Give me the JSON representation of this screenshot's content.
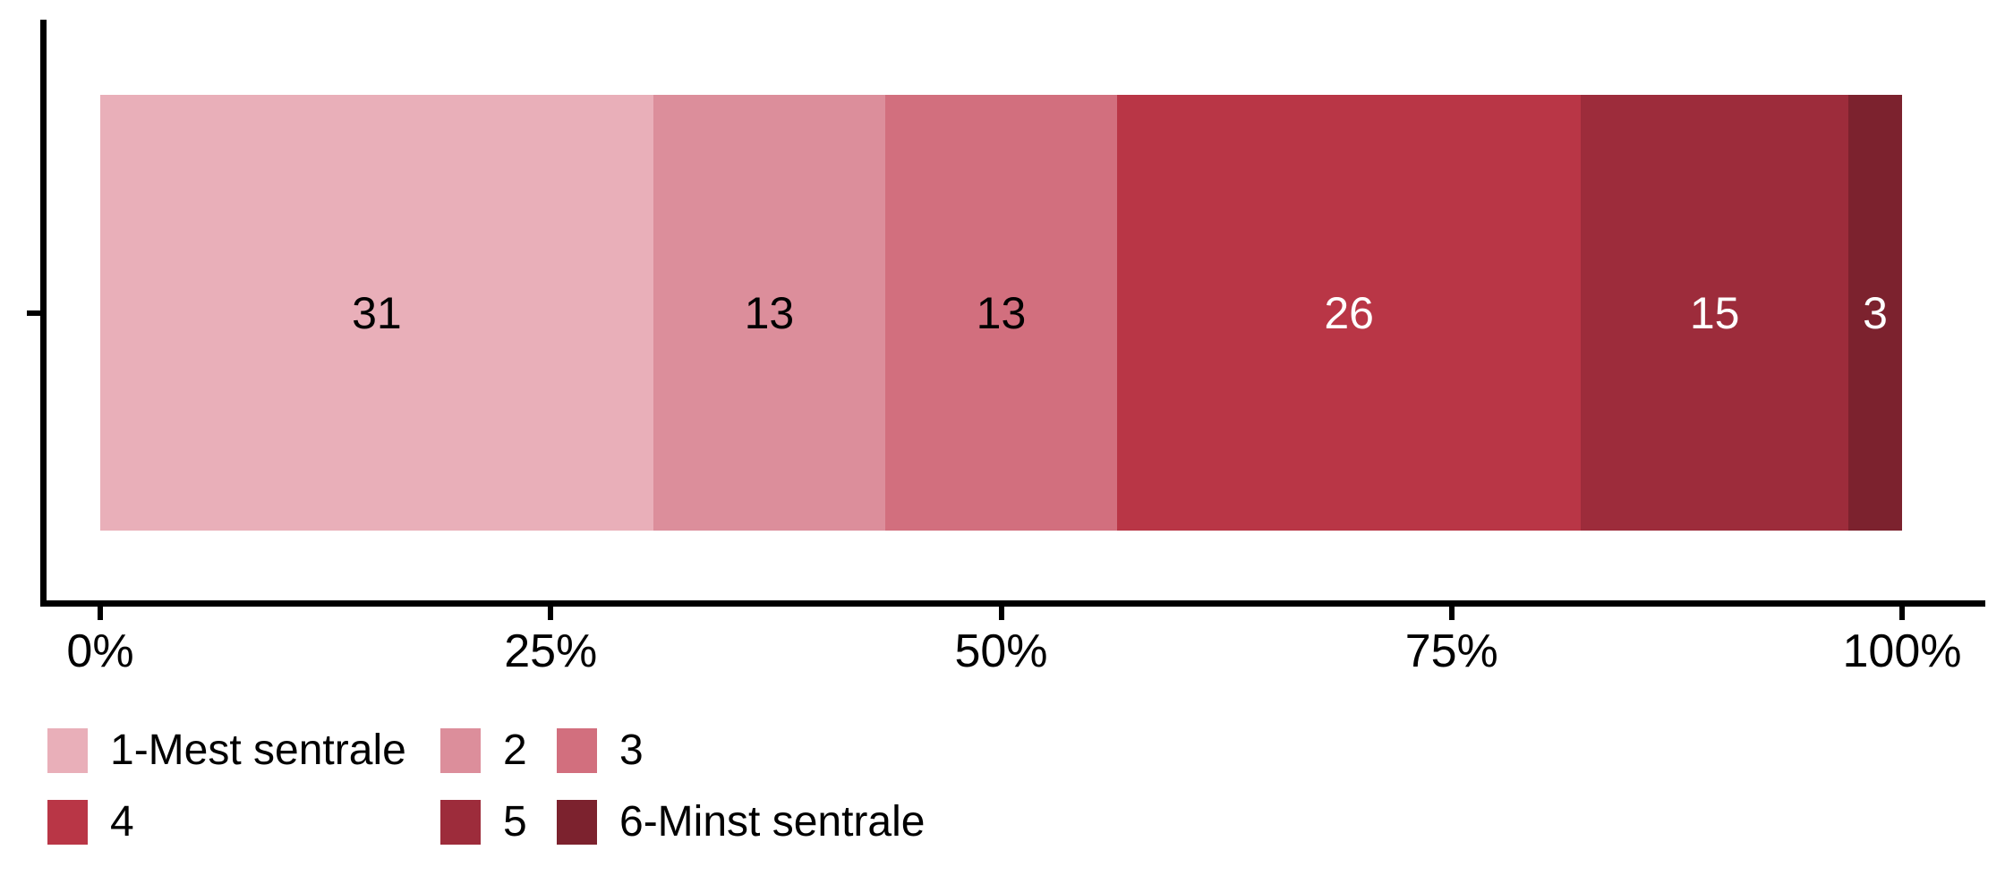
{
  "chart_data": {
    "type": "bar",
    "orientation": "horizontal_stacked",
    "title": "",
    "categories": [
      "1-Mest sentrale",
      "2",
      "3",
      "4",
      "5",
      "6-Minst sentrale"
    ],
    "values": [
      31,
      13,
      13,
      26,
      15,
      3
    ],
    "colors": [
      "#E9AFB9",
      "#DC8E9B",
      "#D26F7E",
      "#B93646",
      "#9D2C3B",
      "#7C222E"
    ],
    "value_label_colors": [
      "#000000",
      "#000000",
      "#000000",
      "#FFFFFF",
      "#FFFFFF",
      "#FFFFFF"
    ],
    "xlabel": "",
    "ylabel": "",
    "xlim": [
      0,
      100
    ],
    "x_tick_labels": [
      "0%",
      "25%",
      "50%",
      "75%",
      "100%"
    ],
    "x_tick_positions": [
      0,
      0.25,
      0.5,
      0.75,
      1
    ],
    "grid": false,
    "axis_color": "#000000",
    "legend": {
      "position": "bottom",
      "rows": [
        [
          {
            "label": "1-Mest sentrale",
            "color": "#E9AFB9"
          },
          {
            "label": "2",
            "color": "#DC8E9B"
          },
          {
            "label": "3",
            "color": "#D26F7E"
          }
        ],
        [
          {
            "label": "4",
            "color": "#B93646"
          },
          {
            "label": "5",
            "color": "#9D2C3B"
          },
          {
            "label": "6-Minst sentrale",
            "color": "#7C222E"
          }
        ]
      ]
    }
  }
}
